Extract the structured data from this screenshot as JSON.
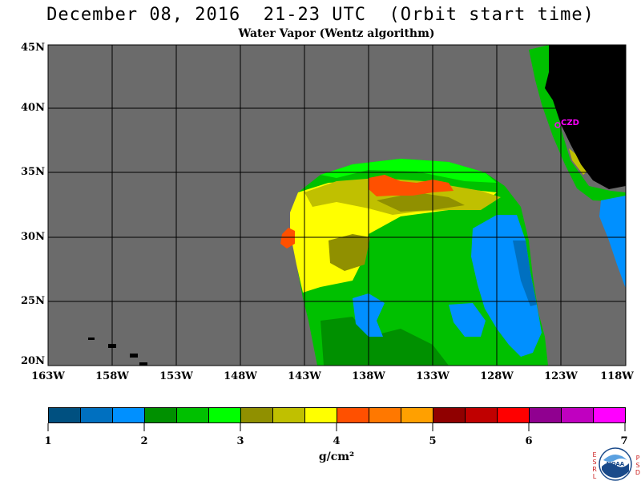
{
  "header": {
    "title": "December 08, 2016  21-23 UTC  (Orbit start time)",
    "subtitle": "Water Vapor (Wentz algorithm)"
  },
  "map": {
    "lat_labels": [
      "45N",
      "40N",
      "35N",
      "30N",
      "25N",
      "20N"
    ],
    "lon_labels": [
      "163W",
      "158W",
      "153W",
      "148W",
      "143W",
      "138W",
      "133W",
      "128W",
      "123W",
      "118W"
    ],
    "station_label": "CZD",
    "colors": {
      "background": "#6b6b6b",
      "land": "#000000",
      "station": "#ff00ff"
    }
  },
  "colorbar": {
    "tick_labels": [
      "1",
      "2",
      "3",
      "4",
      "5",
      "6",
      "7"
    ],
    "units": "g/cm²",
    "colors": [
      "#005080",
      "#0070c0",
      "#0090ff",
      "#009000",
      "#00c000",
      "#00ff00",
      "#909000",
      "#c0c000",
      "#ffff00",
      "#ff5000",
      "#ff7800",
      "#ffa000",
      "#900000",
      "#c00000",
      "#ff0000",
      "#900090",
      "#c000c0",
      "#ff00ff"
    ]
  },
  "logo": {
    "left_text": [
      "E",
      "S",
      "R",
      "L"
    ],
    "right_text": [
      "P",
      "S",
      "D"
    ],
    "center_text": "NOAA"
  }
}
